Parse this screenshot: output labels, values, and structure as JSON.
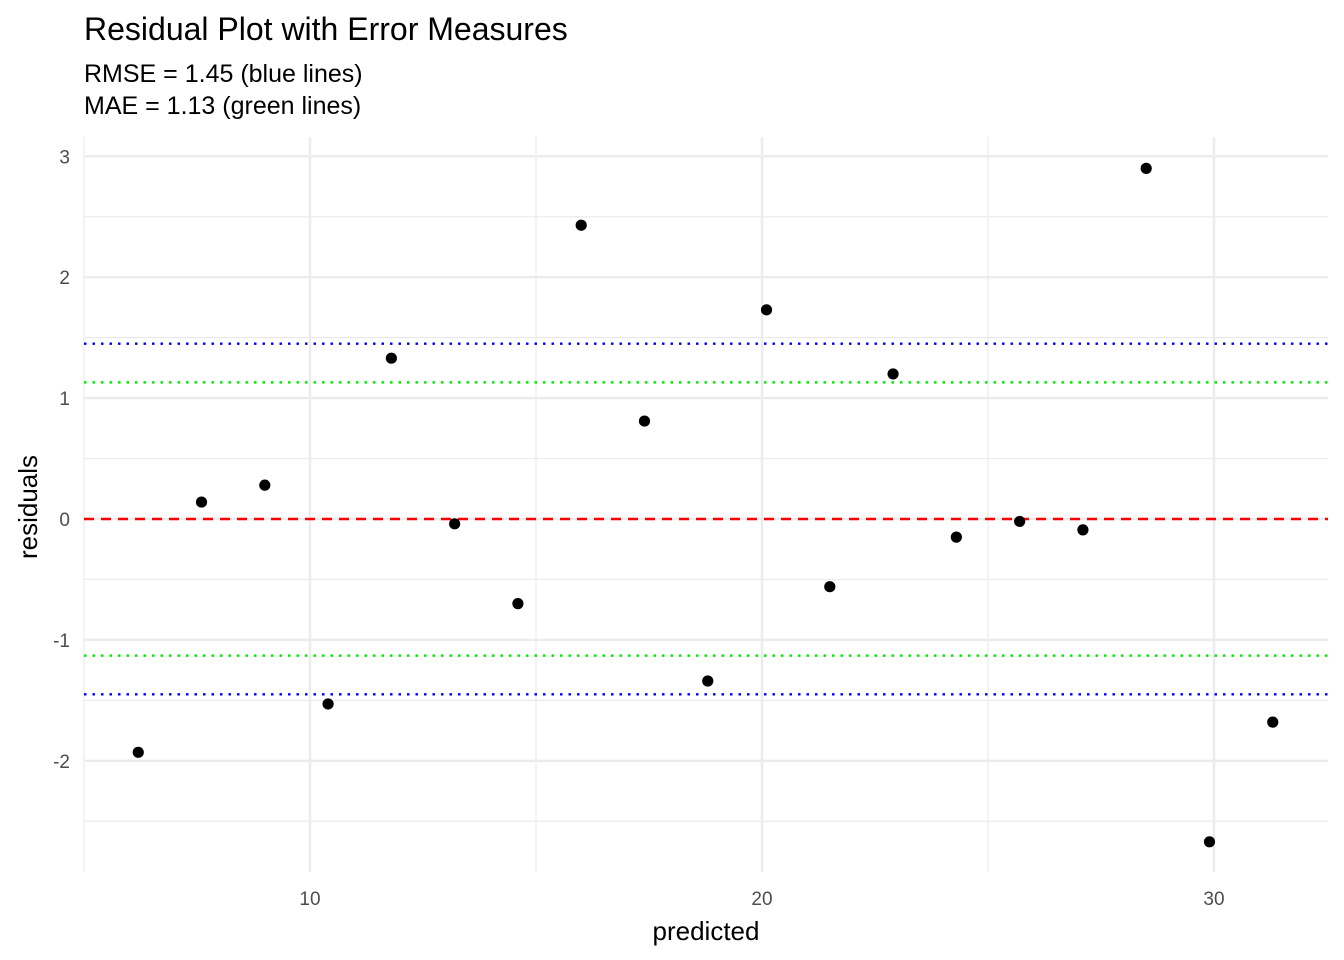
{
  "chart_data": {
    "type": "scatter",
    "title": "Residual Plot with Error Measures",
    "subtitle_lines": [
      "RMSE = 1.45 (blue lines)",
      "MAE = 1.13 (green lines)"
    ],
    "xlabel": "predicted",
    "ylabel": "residuals",
    "xlim": [
      5,
      32.5
    ],
    "ylim": [
      -2.9,
      3.1
    ],
    "x_ticks": [
      10,
      20,
      30
    ],
    "y_ticks": [
      -2,
      -1,
      0,
      1,
      2,
      3
    ],
    "x_tick_labels": [
      "10",
      "20",
      "30"
    ],
    "y_tick_labels": [
      "-2",
      "-1",
      "0",
      "1",
      "2",
      "3"
    ],
    "grid": true,
    "points": [
      {
        "x": 6.2,
        "y": -1.93
      },
      {
        "x": 7.6,
        "y": 0.14
      },
      {
        "x": 9.0,
        "y": 0.28
      },
      {
        "x": 10.4,
        "y": -1.53
      },
      {
        "x": 11.8,
        "y": 1.33
      },
      {
        "x": 13.2,
        "y": -0.04
      },
      {
        "x": 14.6,
        "y": -0.7
      },
      {
        "x": 16.0,
        "y": 2.43
      },
      {
        "x": 17.4,
        "y": 0.81
      },
      {
        "x": 18.8,
        "y": -1.34
      },
      {
        "x": 20.1,
        "y": 1.73
      },
      {
        "x": 21.5,
        "y": -0.56
      },
      {
        "x": 22.9,
        "y": 1.2
      },
      {
        "x": 24.3,
        "y": -0.15
      },
      {
        "x": 25.7,
        "y": -0.02
      },
      {
        "x": 27.1,
        "y": -0.09
      },
      {
        "x": 28.5,
        "y": 2.9
      },
      {
        "x": 29.9,
        "y": -2.67
      },
      {
        "x": 31.3,
        "y": -1.68
      }
    ],
    "reference_lines": [
      {
        "y": 0,
        "color": "#ff0000",
        "style": "dashed"
      },
      {
        "y": 1.45,
        "color": "#0000ff",
        "style": "dotted"
      },
      {
        "y": -1.45,
        "color": "#0000ff",
        "style": "dotted"
      },
      {
        "y": 1.13,
        "color": "#00ee00",
        "style": "dotted"
      },
      {
        "y": -1.13,
        "color": "#00ee00",
        "style": "dotted"
      }
    ],
    "point_color": "#000000",
    "grid_color": "#ebebeb"
  }
}
